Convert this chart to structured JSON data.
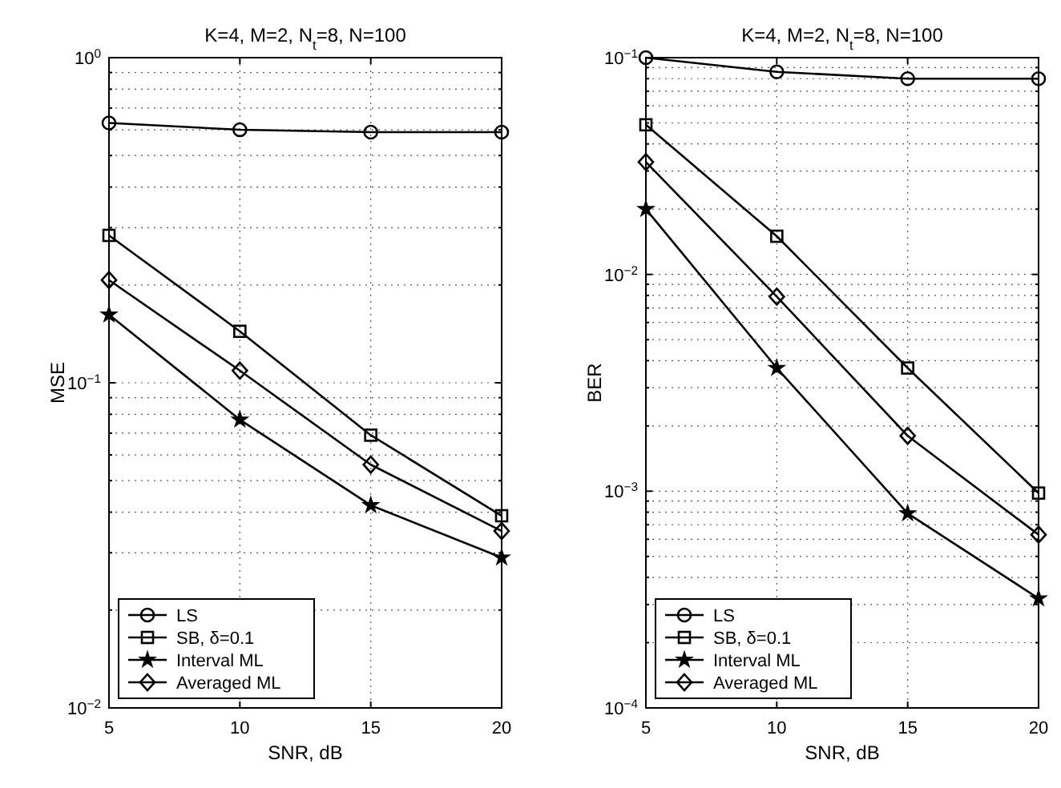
{
  "chart_data": [
    {
      "type": "line",
      "title": "K=4, M=2, N$_{t}$=8, N=100",
      "xlabel": "SNR, dB",
      "ylabel": "MSE",
      "x": [
        5,
        10,
        15,
        20
      ],
      "xlim": [
        5,
        20
      ],
      "xticks": [
        5,
        10,
        15,
        20
      ],
      "ylim": [
        0.01,
        1
      ],
      "yticks": [
        {
          "value": 0.01,
          "label": "10$^{−2}$"
        },
        {
          "value": 0.1,
          "label": "10$^{−1}$"
        },
        {
          "value": 1,
          "label": "10$^{0}$"
        }
      ],
      "log": "y",
      "grid": true,
      "legend": "bottom left",
      "line_style": "solid",
      "series": [
        {
          "name": "LS",
          "color": "#000000",
          "marker": "circle",
          "values": [
            0.63,
            0.6,
            0.59,
            0.59
          ]
        },
        {
          "name": "SB, δ=0.1",
          "color": "#000000",
          "marker": "square",
          "values": [
            0.284,
            0.144,
            0.069,
            0.039
          ]
        },
        {
          "name": "Interval ML",
          "color": "#000000",
          "marker": "star",
          "values": [
            0.162,
            0.077,
            0.042,
            0.029
          ]
        },
        {
          "name": "Averaged ML",
          "color": "#000000",
          "marker": "diamond",
          "values": [
            0.207,
            0.109,
            0.056,
            0.035
          ]
        }
      ]
    },
    {
      "type": "line",
      "title": "K=4, M=2, N$_{t}$=8, N=100",
      "xlabel": "SNR, dB",
      "ylabel": "BER",
      "x": [
        5,
        10,
        15,
        20
      ],
      "xlim": [
        5,
        20
      ],
      "xticks": [
        5,
        10,
        15,
        20
      ],
      "ylim": [
        0.0001,
        0.1
      ],
      "yticks": [
        {
          "value": 0.0001,
          "label": "10$^{−4}$"
        },
        {
          "value": 0.001,
          "label": "10$^{−3}$"
        },
        {
          "value": 0.01,
          "label": "10$^{−2}$"
        },
        {
          "value": 0.1,
          "label": "10$^{−1}$"
        }
      ],
      "log": "y",
      "grid": true,
      "legend": "bottom left",
      "line_style": "solid",
      "series": [
        {
          "name": "LS",
          "color": "#000000",
          "marker": "circle",
          "values": [
            0.1,
            0.086,
            0.08,
            0.08
          ]
        },
        {
          "name": "SB, δ=0.1",
          "color": "#000000",
          "marker": "square",
          "values": [
            0.049,
            0.015,
            0.0037,
            0.00098
          ]
        },
        {
          "name": "Interval ML",
          "color": "#000000",
          "marker": "star",
          "values": [
            0.02,
            0.0037,
            0.00079,
            0.00032
          ]
        },
        {
          "name": "Averaged ML",
          "color": "#000000",
          "marker": "diamond",
          "values": [
            0.033,
            0.0079,
            0.0018,
            0.00063
          ]
        }
      ]
    }
  ]
}
